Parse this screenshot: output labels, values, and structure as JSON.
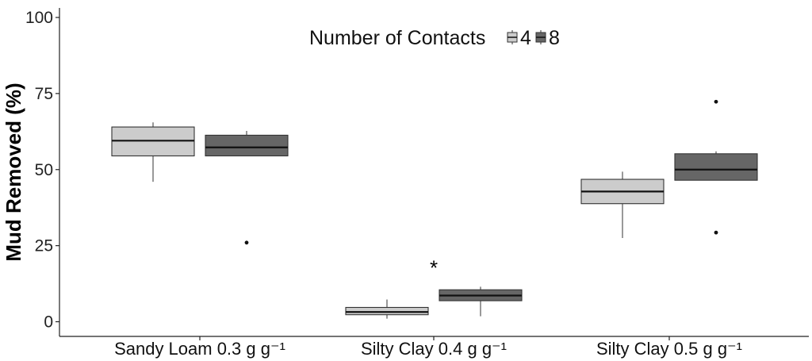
{
  "chart_data": {
    "type": "box",
    "ylabel": "Mud Removed (%)",
    "xlabel": "",
    "ylim": [
      -5,
      104
    ],
    "yticks": [
      0,
      25,
      50,
      75,
      100
    ],
    "grid": false,
    "legend": {
      "title": "Number of Contacts",
      "placement": "top-center",
      "entries": [
        "4",
        "8"
      ]
    },
    "categories": [
      "Sandy Loam 0.3 g g⁻¹",
      "Silty Clay 0.4 g g⁻¹",
      "Silty Clay 0.5 g g⁻¹"
    ],
    "series": [
      {
        "name": "4",
        "color": "#cccccc",
        "boxes": [
          {
            "whisker_low": 46,
            "q1": 54.5,
            "median": 59.5,
            "q3": 64,
            "whisker_high": 65.5,
            "outliers": []
          },
          {
            "whisker_low": 1,
            "q1": 2.3,
            "median": 3.2,
            "q3": 4.7,
            "whisker_high": 7.3,
            "outliers": []
          },
          {
            "whisker_low": 27.5,
            "q1": 38.8,
            "median": 42.8,
            "q3": 46.8,
            "whisker_high": 49.3,
            "outliers": []
          }
        ]
      },
      {
        "name": "8",
        "color": "#666666",
        "boxes": [
          {
            "whisker_low": 54.5,
            "q1": 54.5,
            "median": 57.3,
            "q3": 61.3,
            "whisker_high": 62.7,
            "outliers": [
              26
            ]
          },
          {
            "whisker_low": 1.8,
            "q1": 6.9,
            "median": 8.6,
            "q3": 10.5,
            "whisker_high": 11.5,
            "outliers": []
          },
          {
            "whisker_low": 46.5,
            "q1": 46.5,
            "median": 50,
            "q3": 55.2,
            "whisker_high": 56,
            "outliers": [
              72.3,
              29.3
            ]
          }
        ]
      }
    ],
    "annotations": [
      {
        "text": "*",
        "category": 1,
        "y": 19
      }
    ]
  }
}
